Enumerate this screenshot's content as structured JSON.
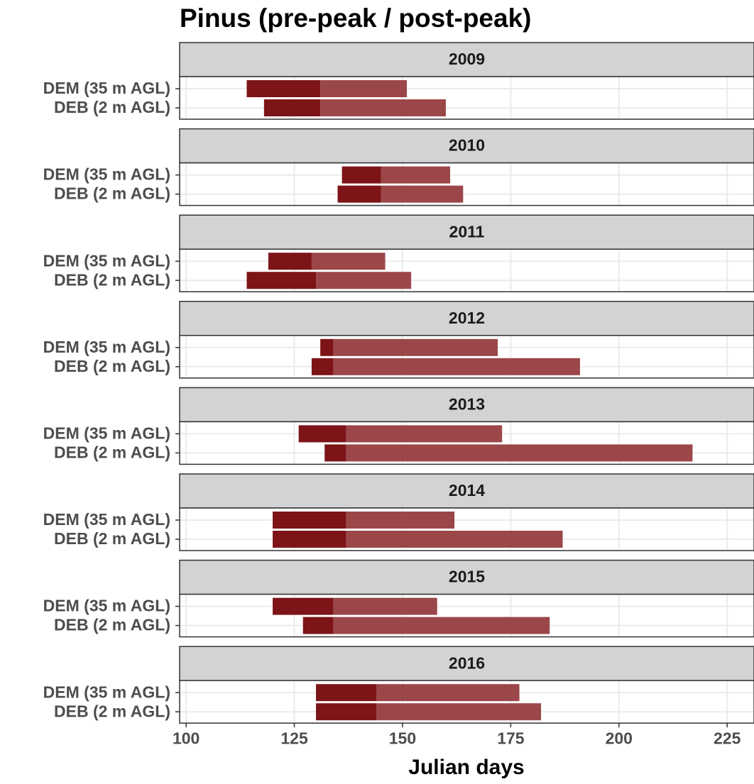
{
  "chart_data": {
    "type": "range-bar",
    "title": "Pinus (pre-peak / post-peak)",
    "xlabel": "Julian days",
    "xlim": [
      98.5,
      231.2
    ],
    "xticks": [
      100,
      125,
      150,
      175,
      200,
      225
    ],
    "grid": true,
    "pre_color": "#7d1417",
    "post_color": "#9b4749",
    "facets": [
      {
        "title": "2009",
        "categories": [
          "DEM (35 m AGL)",
          "DEB (2 m AGL)"
        ],
        "start": [
          114,
          118
        ],
        "peak": [
          131,
          131
        ],
        "end": [
          151,
          160
        ]
      },
      {
        "title": "2010",
        "categories": [
          "DEM (35 m AGL)",
          "DEB (2 m AGL)"
        ],
        "start": [
          136,
          135
        ],
        "peak": [
          145,
          145
        ],
        "end": [
          161,
          164
        ]
      },
      {
        "title": "2011",
        "categories": [
          "DEM (35 m AGL)",
          "DEB (2 m AGL)"
        ],
        "start": [
          119,
          114
        ],
        "peak": [
          129,
          130
        ],
        "end": [
          146,
          152
        ]
      },
      {
        "title": "2012",
        "categories": [
          "DEM (35 m AGL)",
          "DEB (2 m AGL)"
        ],
        "start": [
          131,
          129
        ],
        "peak": [
          134,
          134
        ],
        "end": [
          172,
          191
        ]
      },
      {
        "title": "2013",
        "categories": [
          "DEM (35 m AGL)",
          "DEB (2 m AGL)"
        ],
        "start": [
          126,
          132
        ],
        "peak": [
          137,
          137
        ],
        "end": [
          173,
          217
        ]
      },
      {
        "title": "2014",
        "categories": [
          "DEM (35 m AGL)",
          "DEB (2 m AGL)"
        ],
        "start": [
          120,
          120
        ],
        "peak": [
          137,
          137
        ],
        "end": [
          162,
          187
        ]
      },
      {
        "title": "2015",
        "categories": [
          "DEM (35 m AGL)",
          "DEB (2 m AGL)"
        ],
        "start": [
          120,
          127
        ],
        "peak": [
          134,
          134
        ],
        "end": [
          158,
          184
        ]
      },
      {
        "title": "2016",
        "categories": [
          "DEM (35 m AGL)",
          "DEB (2 m AGL)"
        ],
        "start": [
          130,
          130
        ],
        "peak": [
          144,
          144
        ],
        "end": [
          177,
          182
        ]
      }
    ]
  }
}
